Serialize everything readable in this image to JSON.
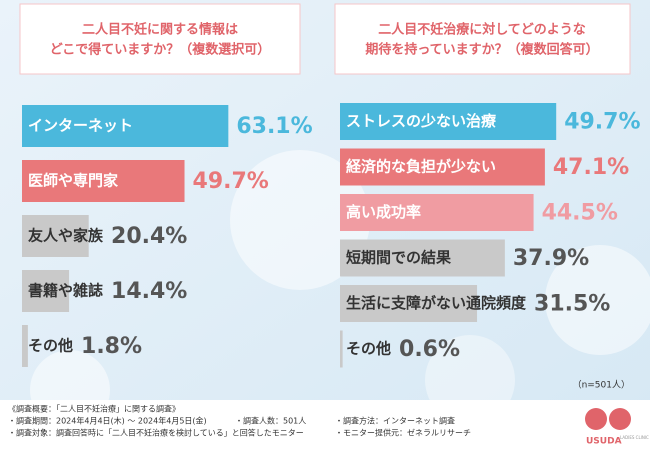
{
  "chart_data": [
    {
      "type": "bar",
      "orientation": "horizontal",
      "title": [
        "二人目不妊に関する情報は",
        "どこで得ていますか？（複数選択可）"
      ],
      "categories": [
        "インターネット",
        "医師や専門家",
        "友人や家族",
        "書籍や雑誌",
        "その他"
      ],
      "values": [
        63.1,
        49.7,
        20.4,
        14.4,
        1.8
      ],
      "value_labels": [
        "63.1%",
        "49.7%",
        "20.4%",
        "14.4%",
        "1.8%"
      ],
      "colors": [
        "#4bb8dc",
        "#e9787a",
        "#c9c9c9",
        "#c9c9c9",
        "#c9c9c9"
      ]
    },
    {
      "type": "bar",
      "orientation": "horizontal",
      "title": [
        "二人目不妊治療に対してどのような",
        "期待を持っていますか？（複数回答可）"
      ],
      "categories": [
        "ストレスの少ない治療",
        "経済的な負担が少ない",
        "高い成功率",
        "短期間での結果",
        "生活に支障がない通院頻度",
        "その他"
      ],
      "values": [
        49.7,
        47.1,
        44.5,
        37.9,
        31.5,
        0.6
      ],
      "value_labels": [
        "49.7%",
        "47.1%",
        "44.5%",
        "37.9%",
        "31.5%",
        "0.6%"
      ],
      "colors": [
        "#4bb8dc",
        "#e9787a",
        "#f09ca2",
        "#c9c9c9",
        "#c9c9c9",
        "#c9c9c9"
      ],
      "note": "（n=501人）"
    }
  ],
  "footer": {
    "heading": "《調査概要：「二人目不妊治療」に関する調査》",
    "items": [
      "・調査期間：2024年4月4日(木) ～ 2024年4月5日(金)",
      "・調査人数：501人",
      "・調査方法：インターネット調査",
      "・調査対象：調査回答時に「二人目不妊治療を検討している」と回答したモニター",
      "・モニター提供元：ゼネラルリサーチ"
    ],
    "logo": "USUDA",
    "logo_sub": "LADIES CLINIC"
  }
}
